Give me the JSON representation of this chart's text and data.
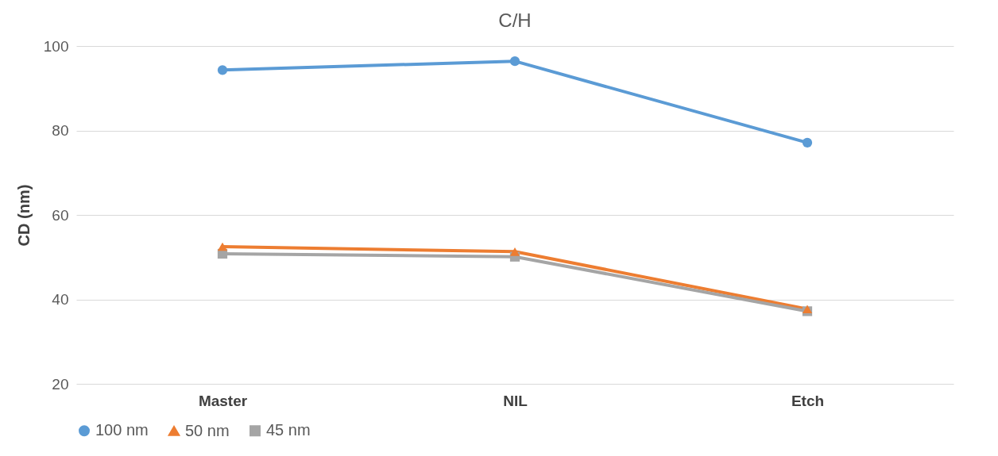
{
  "chart_data": {
    "type": "line",
    "title": "C/H",
    "ylabel": "CD (nm)",
    "categories": [
      "Master",
      "NIL",
      "Etch"
    ],
    "series": [
      {
        "name": "100 nm",
        "color": "#5b9bd5",
        "marker": "circle",
        "values": [
          94.3,
          96.4,
          77.1
        ]
      },
      {
        "name": "50 nm",
        "color": "#ed7d31",
        "marker": "triangle",
        "values": [
          52.5,
          51.3,
          37.7
        ]
      },
      {
        "name": "45 nm",
        "color": "#a5a5a5",
        "marker": "square",
        "values": [
          50.8,
          50.1,
          37.2
        ]
      }
    ],
    "ylim": [
      20,
      100
    ],
    "yticks": [
      20,
      40,
      60,
      80,
      100
    ],
    "grid": "y",
    "legend": "bottom",
    "line_style": "solid"
  }
}
